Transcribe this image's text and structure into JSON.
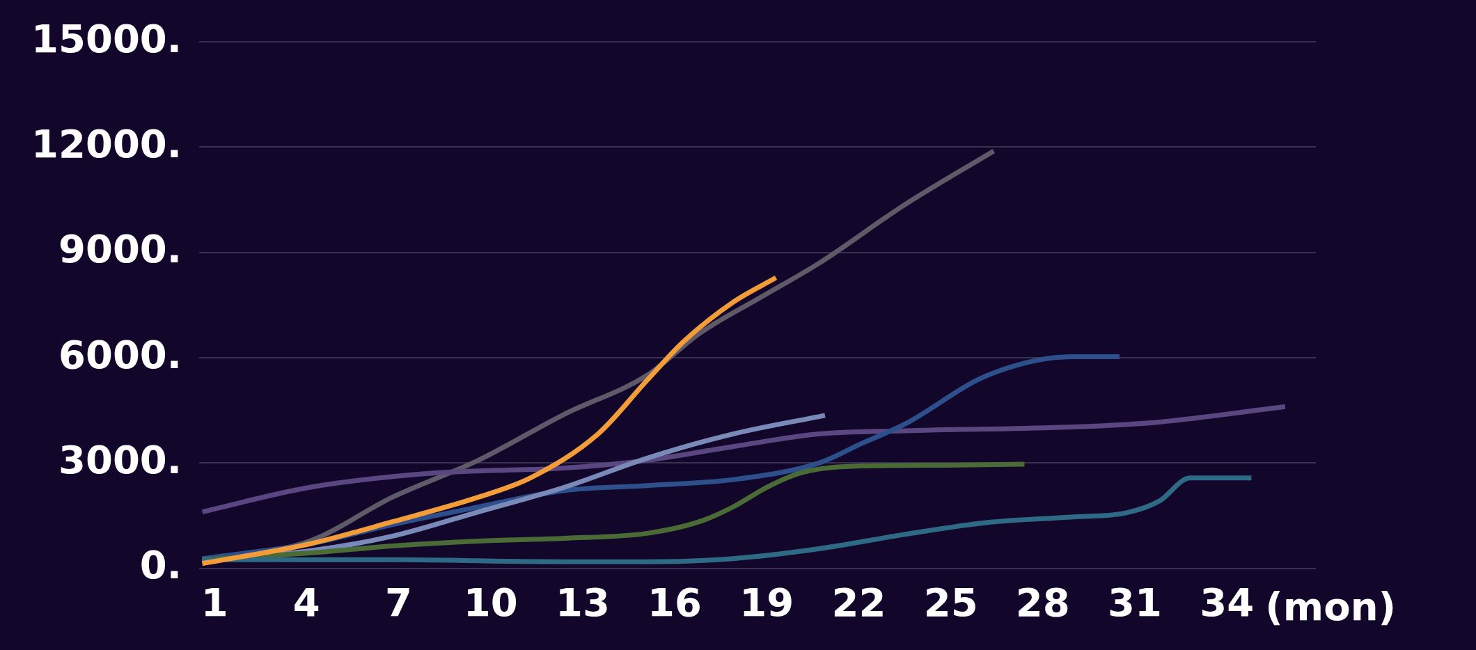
{
  "chart_data": {
    "type": "line",
    "xlabel": "(mon)",
    "xlim": [
      0.5,
      36.9
    ],
    "xticks": [
      1,
      4,
      7,
      10,
      13,
      16,
      19,
      22,
      25,
      28,
      31,
      34
    ],
    "ylim": [
      0,
      15000
    ],
    "yticks": [
      {
        "value": 0,
        "label": "0."
      },
      {
        "value": 3000,
        "label": "3000."
      },
      {
        "value": 6000,
        "label": "6000."
      },
      {
        "value": 9000,
        "label": "9000."
      },
      {
        "value": 12000,
        "label": "12000."
      },
      {
        "value": 15000,
        "label": "15000."
      }
    ],
    "grid": "y",
    "marker": "none",
    "line_style": "solid",
    "series": [
      {
        "color": "#5f5a68",
        "x": [
          0.6,
          4.1,
          6.8,
          9.6,
          12.4,
          15.1,
          16.8,
          18.8,
          20.7,
          23.5,
          26.4
        ],
        "values": [
          220,
          780,
          2030,
          3080,
          4390,
          5500,
          6690,
          7720,
          8690,
          10360,
          11890
        ]
      },
      {
        "color": "#5a4680",
        "x": [
          0.6,
          4.1,
          8.2,
          12.4,
          15.1,
          17.9,
          20.7,
          23.5,
          29.0,
          31.8,
          35.9
        ],
        "values": [
          1610,
          2310,
          2720,
          2860,
          3080,
          3470,
          3830,
          3920,
          4030,
          4170,
          4610
        ]
      },
      {
        "color": "#2d4f8c",
        "x": [
          0.6,
          4.1,
          6.8,
          9.6,
          12.4,
          15.1,
          17.9,
          20.7,
          22.1,
          23.5,
          26.2,
          29.0,
          30.5
        ],
        "values": [
          280,
          700,
          1250,
          1750,
          2220,
          2360,
          2530,
          3000,
          3560,
          4110,
          5500,
          6030,
          6030
        ]
      },
      {
        "color": "#7a8ab8",
        "x": [
          0.6,
          4.1,
          6.8,
          9.6,
          12.4,
          15.1,
          17.9,
          20.9
        ],
        "values": [
          220,
          500,
          920,
          1610,
          2310,
          3140,
          3830,
          4360
        ]
      },
      {
        "color": "#4a6b35",
        "x": [
          0.6,
          4.1,
          6.8,
          9.6,
          12.4,
          15.1,
          16.8,
          17.9,
          19.0,
          20.1,
          22.1,
          24.9,
          27.4
        ],
        "values": [
          250,
          440,
          640,
          780,
          860,
          1000,
          1330,
          1750,
          2310,
          2720,
          2920,
          2940,
          2970
        ]
      },
      {
        "color": "#2e6a86",
        "x": [
          0.6,
          6.8,
          12.4,
          15.1,
          17.9,
          20.7,
          23.5,
          26.2,
          29.0,
          30.7,
          31.8,
          32.8,
          34.0,
          34.8
        ],
        "values": [
          250,
          250,
          190,
          190,
          280,
          560,
          970,
          1310,
          1470,
          1580,
          1920,
          2580,
          2580,
          2580
        ]
      },
      {
        "color": "#f39c3a",
        "x": [
          0.6,
          4.1,
          6.8,
          9.6,
          11.3,
          13.5,
          15.1,
          16.3,
          17.9,
          19.3
        ],
        "values": [
          140,
          700,
          1330,
          2030,
          2580,
          3830,
          5360,
          6470,
          7580,
          8280
        ]
      }
    ]
  }
}
